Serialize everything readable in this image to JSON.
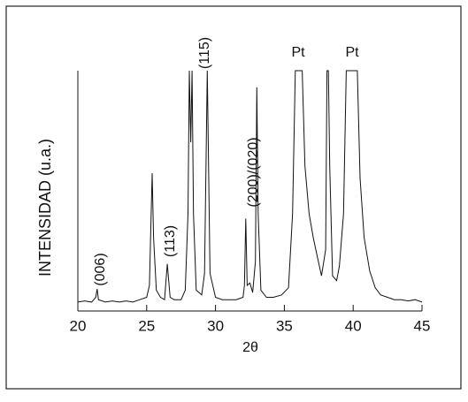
{
  "chart_data": {
    "type": "line",
    "x": [
      20,
      20.5,
      21,
      21.3,
      21.4,
      21.5,
      22,
      22.5,
      23,
      23.5,
      24,
      24.5,
      25,
      25.2,
      25.4,
      25.5,
      25.7,
      26,
      26.3,
      26.5,
      26.7,
      27,
      27.5,
      27.8,
      28.0,
      28.1,
      28.2,
      28.3,
      28.4,
      28.6,
      29,
      29.2,
      29.4,
      29.6,
      30,
      30.5,
      31,
      31.5,
      32,
      32.1,
      32.2,
      32.3,
      32.5,
      32.7,
      32.9,
      33.0,
      33.1,
      33.3,
      33.7,
      34.2,
      34.8,
      35.3,
      35.6,
      35.8,
      36.0,
      36.3,
      36.5,
      36.8,
      37.1,
      37.4,
      37.7,
      38.0,
      38.1,
      38.2,
      38.3,
      38.5,
      38.8,
      39.0,
      39.3,
      39.5,
      39.7,
      40.0,
      40.3,
      40.5,
      40.8,
      41.2,
      41.6,
      42.0,
      42.5,
      43,
      43.5,
      44,
      44.5,
      45
    ],
    "series": [
      {
        "color": "#111111",
        "values": [
          3,
          3.5,
          3,
          5,
          8.5,
          4,
          3,
          3.5,
          3,
          3.5,
          3,
          4,
          5,
          10,
          57,
          30,
          8,
          5,
          4,
          19,
          5,
          4,
          4,
          8,
          40,
          100,
          70,
          100,
          40,
          8,
          6,
          15,
          100,
          15,
          5,
          4,
          4,
          4,
          5,
          10,
          38,
          10,
          11,
          7,
          20,
          93,
          40,
          8,
          5,
          5,
          6,
          9,
          40,
          100,
          100,
          100,
          60,
          40,
          30,
          22,
          14,
          25,
          100,
          100,
          60,
          14,
          12,
          18,
          40,
          100,
          100,
          100,
          100,
          55,
          30,
          16,
          9,
          6,
          5,
          4,
          4,
          3.5,
          4,
          3
        ]
      }
    ],
    "xlim": [
      20,
      45
    ],
    "ylim": [
      0,
      100
    ],
    "xticks": [
      20,
      25,
      30,
      35,
      40,
      45
    ],
    "x_label": "2θ",
    "y_label": "INTENSIDAD (u.a.)",
    "annotations": [
      "(006)",
      "(113)",
      "(115)",
      "(200)/(020)",
      "Pt",
      "Pt"
    ]
  }
}
